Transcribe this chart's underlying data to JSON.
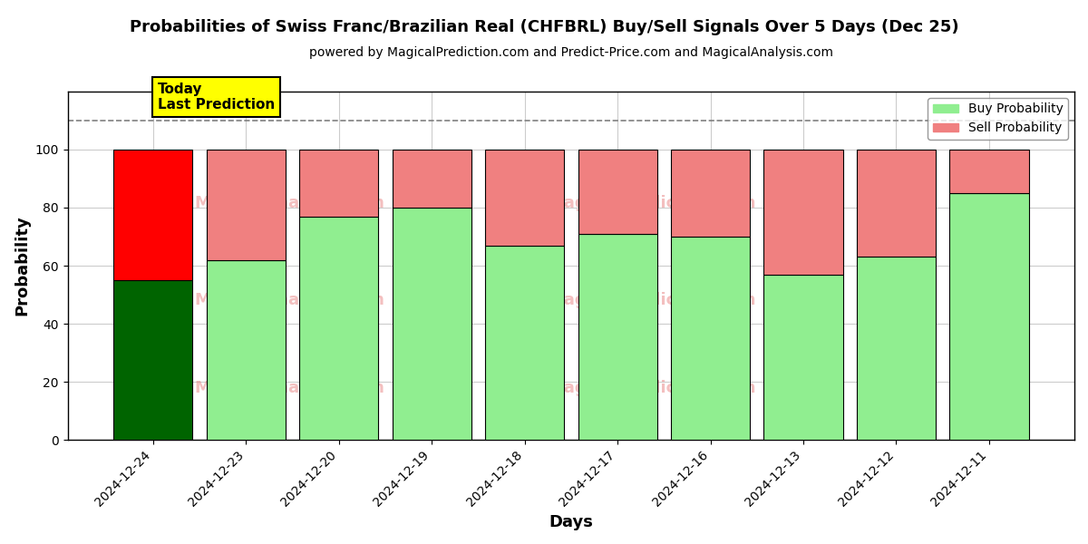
{
  "title": "Probabilities of Swiss Franc/Brazilian Real (CHFBRL) Buy/Sell Signals Over 5 Days (Dec 25)",
  "subtitle": "powered by MagicalPrediction.com and Predict-Price.com and MagicalAnalysis.com",
  "xlabel": "Days",
  "ylabel": "Probability",
  "categories": [
    "2024-12-24",
    "2024-12-23",
    "2024-12-20",
    "2024-12-19",
    "2024-12-18",
    "2024-12-17",
    "2024-12-16",
    "2024-12-13",
    "2024-12-12",
    "2024-12-11"
  ],
  "buy_values": [
    55,
    62,
    77,
    80,
    67,
    71,
    70,
    57,
    63,
    85
  ],
  "sell_values": [
    45,
    38,
    23,
    20,
    33,
    29,
    30,
    43,
    37,
    15
  ],
  "today_buy_color": "#006400",
  "today_sell_color": "#FF0000",
  "buy_color": "#90EE90",
  "sell_color": "#F08080",
  "today_label": "Today\nLast Prediction",
  "today_label_bg": "#FFFF00",
  "legend_buy": "Buy Probability",
  "legend_sell": "Sell Probability",
  "dashed_line_y": 110,
  "ylim": [
    0,
    120
  ],
  "yticks": [
    0,
    20,
    40,
    60,
    80,
    100
  ],
  "background_color": "#ffffff",
  "grid_color": "#cccccc"
}
